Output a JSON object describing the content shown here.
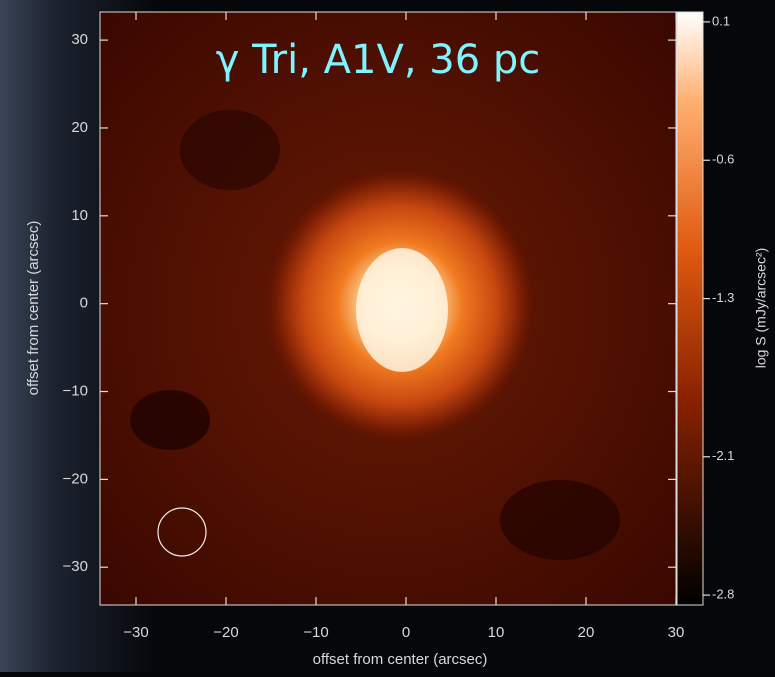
{
  "chart_data": {
    "type": "image",
    "annotation": "γ Tri, A1V, 36 pc",
    "x_label": "offset from center (arcsec)",
    "y_label": "offset from center (arcsec)",
    "colorbar_label": "log S (mJy/arcsec²)",
    "xlim": [
      -34,
      30
    ],
    "ylim": [
      -34.3,
      33.2
    ],
    "xticks": [
      {
        "value": -30,
        "label": "−30"
      },
      {
        "value": -20,
        "label": "−20"
      },
      {
        "value": -10,
        "label": "−10"
      },
      0,
      10,
      20,
      30
    ],
    "yticks": [
      {
        "value": -30,
        "label": "−30"
      },
      {
        "value": -20,
        "label": "−20"
      },
      {
        "value": -10,
        "label": "−10"
      },
      0,
      10,
      20,
      30
    ],
    "clim": [
      -2.85,
      0.15
    ],
    "cticks": [
      0.1,
      -0.6,
      -1.3,
      -2.1,
      -2.8
    ]
  }
}
